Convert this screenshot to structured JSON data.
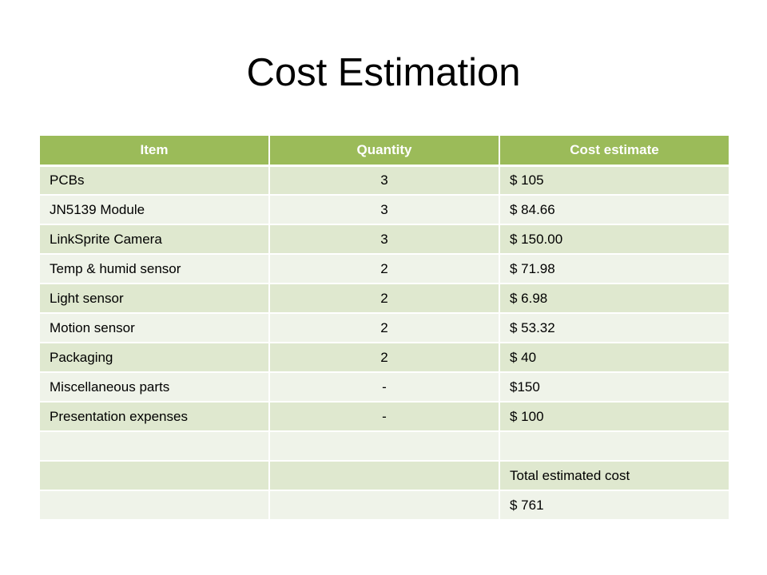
{
  "slide": {
    "title": "Cost Estimation"
  },
  "table": {
    "headers": [
      "Item",
      "Quantity",
      "Cost estimate"
    ],
    "rows": [
      {
        "item": "PCBs",
        "quantity": "3",
        "cost": "$ 105"
      },
      {
        "item": "JN5139 Module",
        "quantity": "3",
        "cost": "$ 84.66"
      },
      {
        "item": "LinkSprite Camera",
        "quantity": "3",
        "cost": "$ 150.00"
      },
      {
        "item": "Temp & humid sensor",
        "quantity": "2",
        "cost": "$ 71.98"
      },
      {
        "item": "Light sensor",
        "quantity": "2",
        "cost": "$ 6.98"
      },
      {
        "item": "Motion sensor",
        "quantity": "2",
        "cost": "$ 53.32"
      },
      {
        "item": "Packaging",
        "quantity": "2",
        "cost": "$ 40"
      },
      {
        "item": "Miscellaneous parts",
        "quantity": "-",
        "cost": "$150"
      },
      {
        "item": "Presentation expenses",
        "quantity": "-",
        "cost": "$ 100"
      },
      {
        "item": "",
        "quantity": "",
        "cost": ""
      },
      {
        "item": "",
        "quantity": "",
        "cost": "Total estimated cost"
      },
      {
        "item": "",
        "quantity": "",
        "cost": "$ 761"
      }
    ]
  },
  "colors": {
    "header_bg": "#9bbb59",
    "row_dark": "#dfe8cf",
    "row_light": "#eff3e9"
  }
}
